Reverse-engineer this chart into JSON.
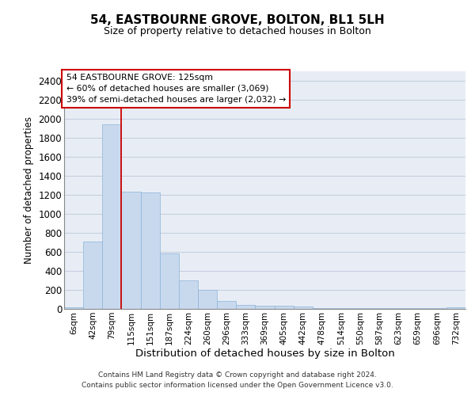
{
  "title": "54, EASTBOURNE GROVE, BOLTON, BL1 5LH",
  "subtitle": "Size of property relative to detached houses in Bolton",
  "xlabel": "Distribution of detached houses by size in Bolton",
  "ylabel": "Number of detached properties",
  "bar_color": "#c9d9ed",
  "bar_edge_color": "#8ab4d8",
  "bg_axes": "#e8edf5",
  "grid_color": "#c5cfe0",
  "red_color": "#cc0000",
  "annotation_line1": "54 EASTBOURNE GROVE: 125sqm",
  "annotation_line2": "← 60% of detached houses are smaller (3,069)",
  "annotation_line3": "39% of semi-detached houses are larger (2,032) →",
  "categories": [
    "6sqm",
    "42sqm",
    "79sqm",
    "115sqm",
    "151sqm",
    "187sqm",
    "224sqm",
    "260sqm",
    "296sqm",
    "333sqm",
    "369sqm",
    "405sqm",
    "442sqm",
    "478sqm",
    "514sqm",
    "550sqm",
    "587sqm",
    "623sqm",
    "659sqm",
    "696sqm",
    "732sqm"
  ],
  "values": [
    15,
    710,
    1940,
    1230,
    1225,
    580,
    300,
    200,
    80,
    45,
    35,
    30,
    25,
    10,
    10,
    10,
    5,
    5,
    5,
    5,
    15
  ],
  "ylim": [
    0,
    2500
  ],
  "yticks": [
    0,
    200,
    400,
    600,
    800,
    1000,
    1200,
    1400,
    1600,
    1800,
    2000,
    2200,
    2400
  ],
  "property_bar_index": 3,
  "footer_line1": "Contains HM Land Registry data © Crown copyright and database right 2024.",
  "footer_line2": "Contains public sector information licensed under the Open Government Licence v3.0."
}
